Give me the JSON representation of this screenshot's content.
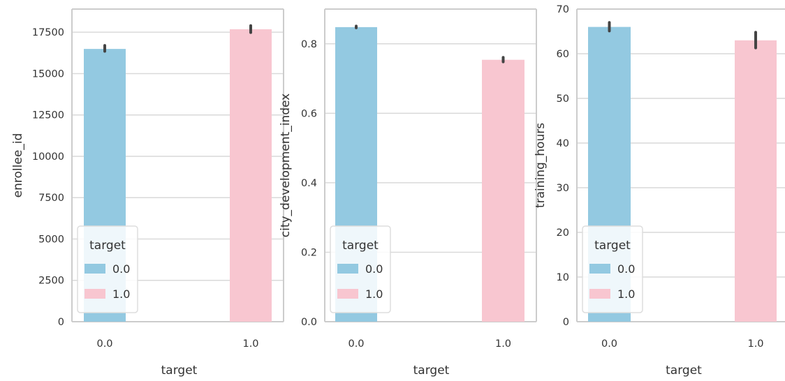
{
  "colors": {
    "series_0": "#93c9e1",
    "series_1": "#f8c6d0",
    "errorbar": "#444444",
    "grid": "#d9d9d9",
    "frame": "#cccccc"
  },
  "chart_data": [
    {
      "type": "bar",
      "categories": [
        "0.0",
        "1.0"
      ],
      "series": [
        {
          "name": "0.0",
          "values": [
            16490,
            null
          ],
          "ci": [
            [
              16350,
              16700
            ],
            null
          ]
        },
        {
          "name": "1.0",
          "values": [
            null,
            17680
          ],
          "ci": [
            null,
            [
              17480,
              17900
            ]
          ]
        }
      ],
      "xlabel": "target",
      "ylabel": "enrollee_id",
      "ylim": [
        0,
        18900
      ],
      "yticks": [
        0,
        2500,
        5000,
        7500,
        10000,
        12500,
        15000,
        17500
      ],
      "ytick_labels": [
        "0",
        "2500",
        "5000",
        "7500",
        "10000",
        "12500",
        "15000",
        "17500"
      ],
      "grid": true,
      "legend": {
        "title": "target",
        "entries": [
          "0.0",
          "1.0"
        ],
        "placement": "lower-left"
      }
    },
    {
      "type": "bar",
      "categories": [
        "0.0",
        "1.0"
      ],
      "series": [
        {
          "name": "0.0",
          "values": [
            0.848,
            null
          ],
          "ci": [
            [
              0.846,
              0.851
            ],
            null
          ]
        },
        {
          "name": "1.0",
          "values": [
            null,
            0.754
          ],
          "ci": [
            null,
            [
              0.748,
              0.761
            ]
          ]
        }
      ],
      "xlabel": "target",
      "ylabel": "city_development_index",
      "ylim": [
        0,
        0.9
      ],
      "yticks": [
        0,
        0.2,
        0.4,
        0.6,
        0.8
      ],
      "ytick_labels": [
        "0.0",
        "0.2",
        "0.4",
        "0.6",
        "0.8"
      ],
      "grid": true,
      "legend": {
        "title": "target",
        "entries": [
          "0.0",
          "1.0"
        ],
        "placement": "lower-left"
      }
    },
    {
      "type": "bar",
      "categories": [
        "0.0",
        "1.0"
      ],
      "series": [
        {
          "name": "0.0",
          "values": [
            66.0,
            null
          ],
          "ci": [
            [
              65.1,
              67.0
            ],
            null
          ]
        },
        {
          "name": "1.0",
          "values": [
            null,
            63.0
          ],
          "ci": [
            null,
            [
              61.3,
              64.8
            ]
          ]
        }
      ],
      "xlabel": "target",
      "ylabel": "training_hours",
      "ylim": [
        0,
        70
      ],
      "yticks": [
        0,
        10,
        20,
        30,
        40,
        50,
        60,
        70
      ],
      "ytick_labels": [
        "0",
        "10",
        "20",
        "30",
        "40",
        "50",
        "60",
        "70"
      ],
      "grid": true,
      "legend": {
        "title": "target",
        "entries": [
          "0.0",
          "1.0"
        ],
        "placement": "lower-left"
      }
    }
  ]
}
